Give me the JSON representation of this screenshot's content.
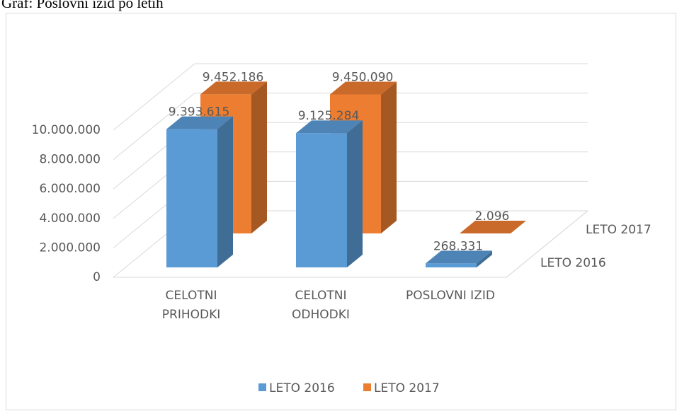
{
  "chart_data": {
    "type": "bar3d",
    "title": "Graf: Poslovni izid po letih",
    "categories": [
      "CELOTNI PRIHODKI",
      "CELOTNI ODHODKI",
      "POSLOVNI IZID"
    ],
    "series": [
      {
        "name": "LETO 2016",
        "color": "#5b9bd5",
        "values": [
          9393615,
          9125284,
          268331
        ],
        "value_labels": [
          "9.393.615",
          "9.125.284",
          "268.331"
        ]
      },
      {
        "name": "LETO 2017",
        "color": "#ed7d31",
        "values": [
          9452186,
          9450090,
          2096
        ],
        "value_labels": [
          "9.452.186",
          "9.450.090",
          "2.096"
        ]
      }
    ],
    "ylim": [
      0,
      10000000
    ],
    "yticks": [
      0,
      {
        "value": 2000000,
        "label": "2.000.000"
      },
      {
        "value": 4000000,
        "label": "4.000.000"
      },
      {
        "value": 6000000,
        "label": "6.000.000"
      },
      {
        "value": 8000000,
        "label": "8.000.000"
      },
      {
        "value": 10000000,
        "label": "10.000.000"
      }
    ],
    "grid": true,
    "legend": "bottom"
  }
}
